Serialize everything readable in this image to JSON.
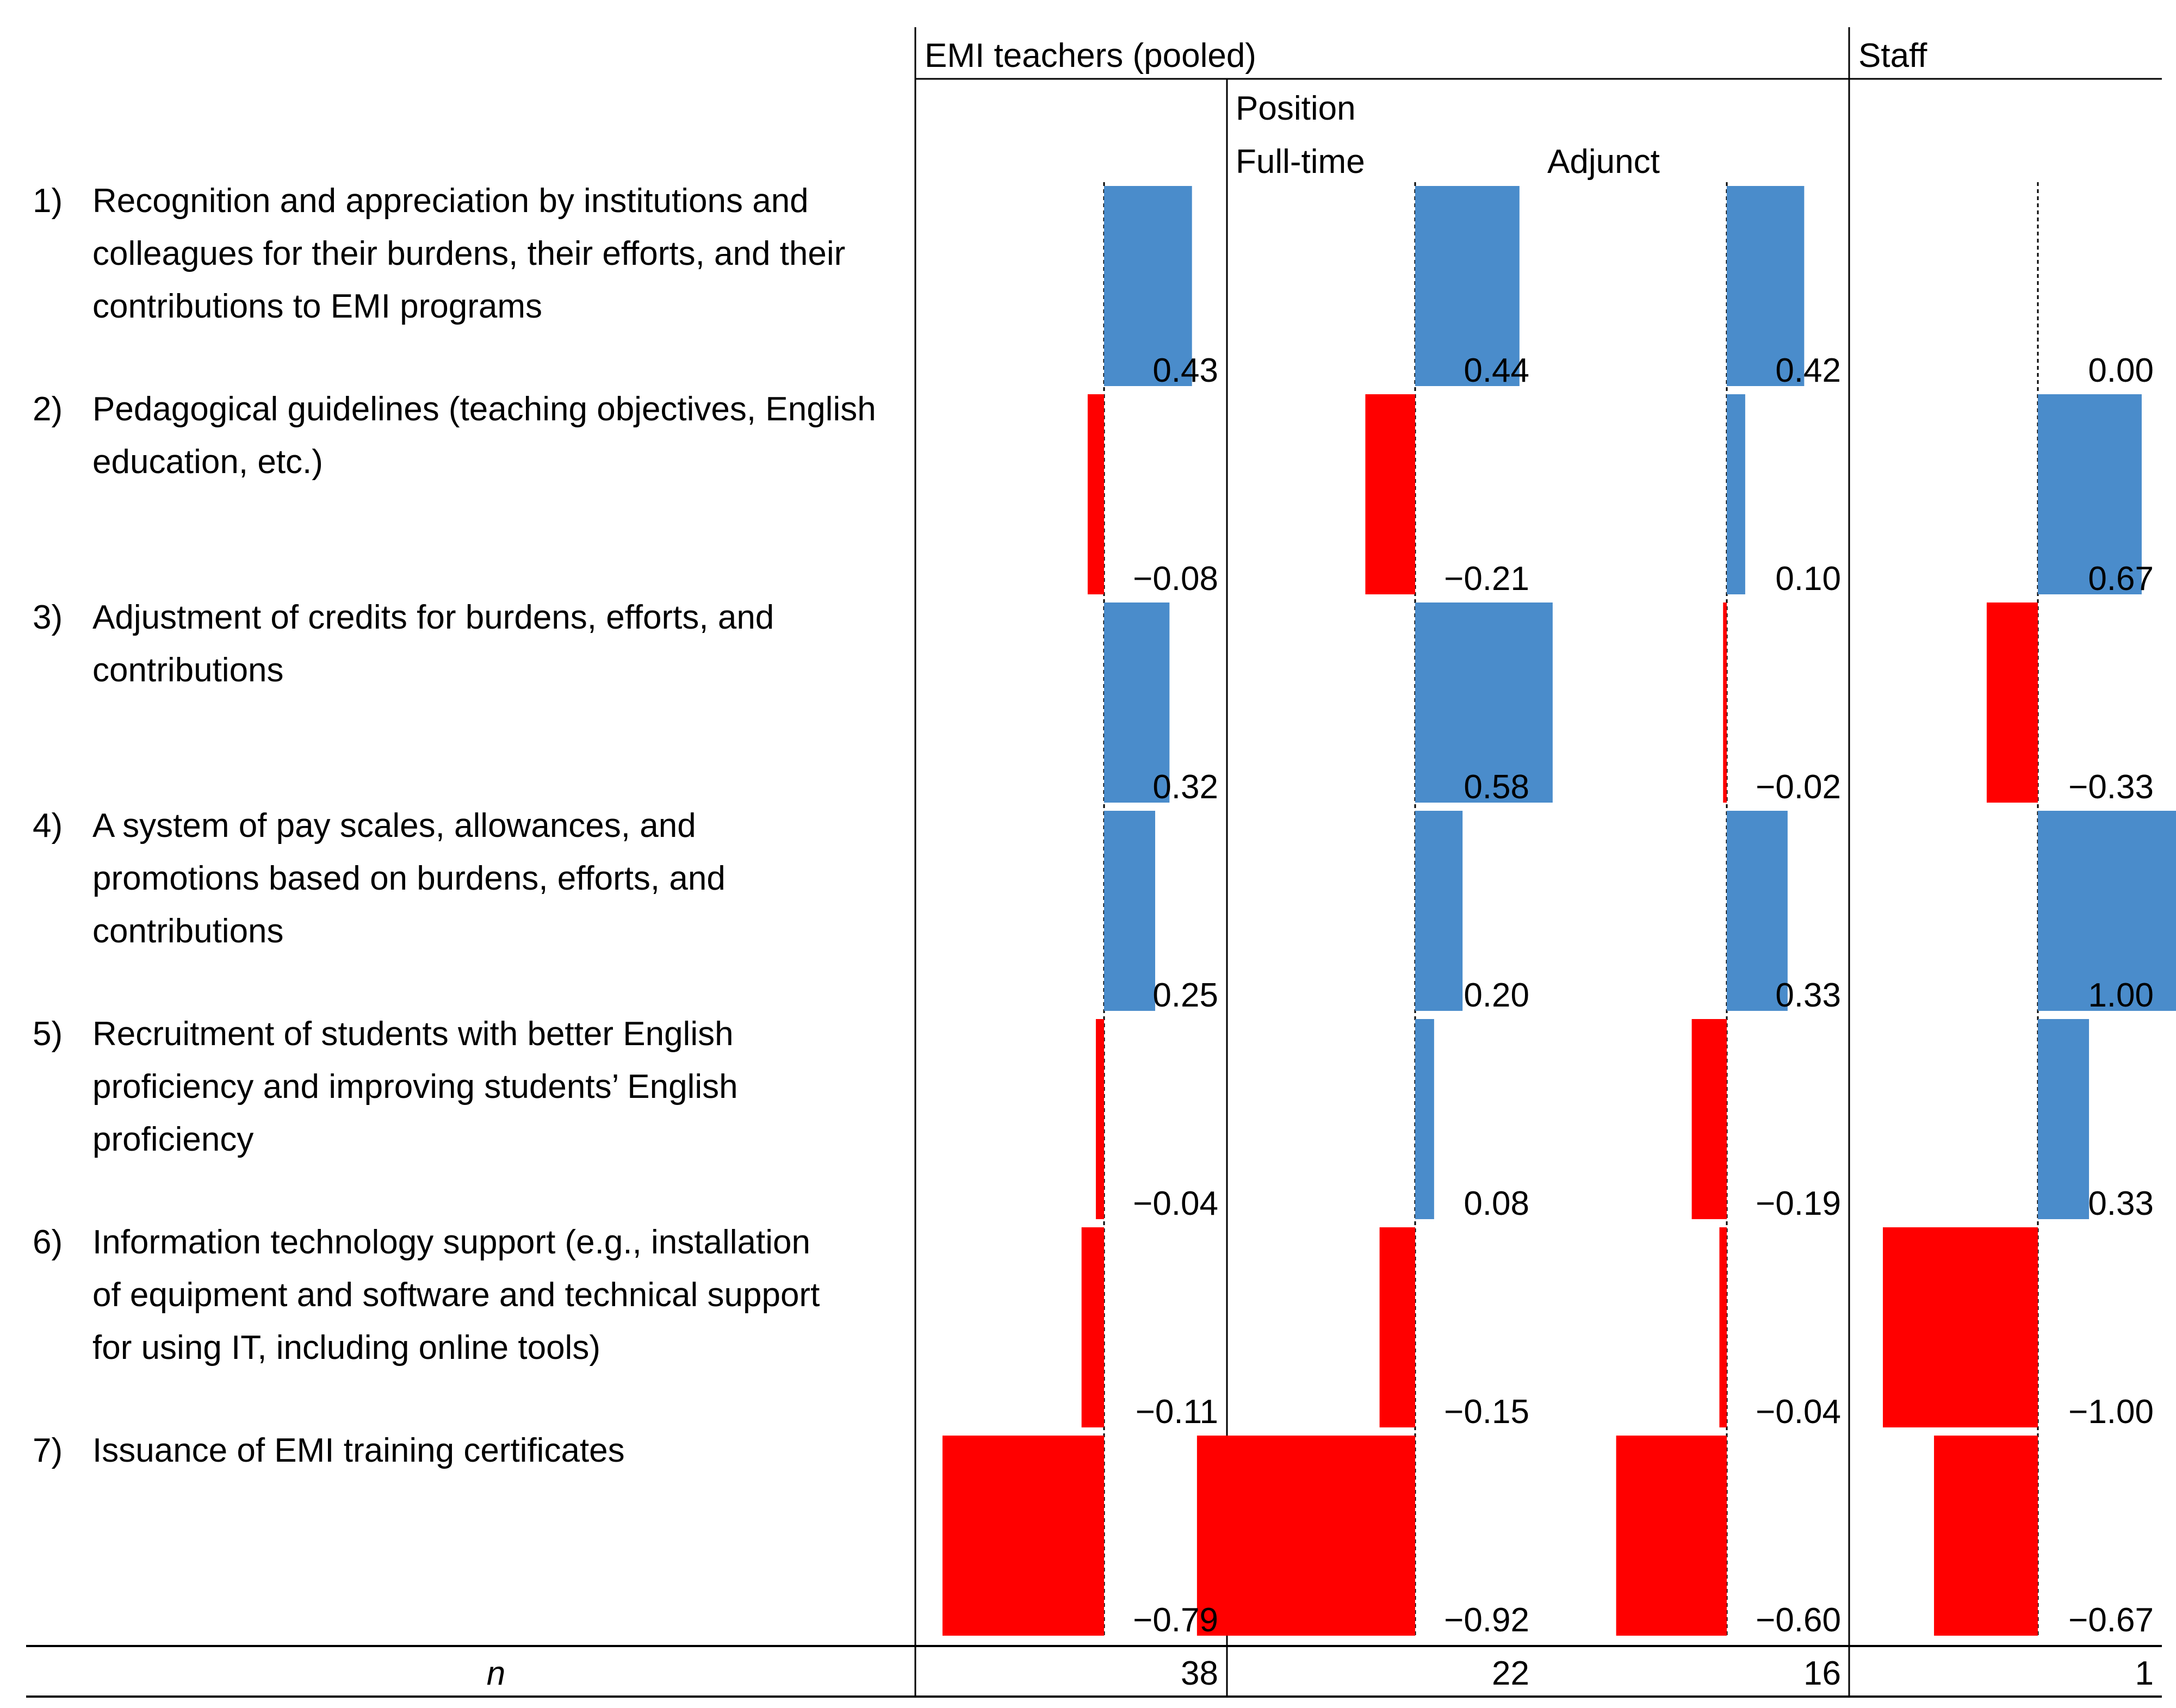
{
  "chart_data": {
    "type": "bar",
    "orientation": "horizontal",
    "headers": {
      "pooled": "EMI teachers (pooled)",
      "position": "Position",
      "fulltime": "Full-time",
      "adjunct": "Adjunct",
      "staff": "Staff"
    },
    "items": [
      {
        "num": "1)",
        "lines": [
          "Recognition and appreciation by institutions and",
          "colleagues for their burdens, their efforts, and their",
          "contributions to EMI programs"
        ]
      },
      {
        "num": "2)",
        "lines": [
          "Pedagogical guidelines (teaching objectives, English",
          "education, etc.)"
        ]
      },
      {
        "num": "3)",
        "lines": [
          "Adjustment of credits for burdens, efforts, and",
          "contributions"
        ]
      },
      {
        "num": "4)",
        "lines": [
          "A system of pay scales, allowances, and",
          "promotions based on burdens, efforts, and",
          "contributions"
        ]
      },
      {
        "num": "5)",
        "lines": [
          "Recruitment of students with better English",
          "proficiency and improving students’ English",
          "proficiency"
        ]
      },
      {
        "num": "6)",
        "lines": [
          "Information technology support (e.g., installation",
          "of equipment and software and technical support",
          "for using IT, including online tools)"
        ]
      },
      {
        "num": "7)",
        "lines": [
          "Issuance of EMI training certificates"
        ]
      }
    ],
    "series": [
      {
        "name": "EMI teachers (pooled)",
        "values": [
          0.43,
          -0.08,
          0.32,
          0.25,
          -0.04,
          -0.11,
          -0.79
        ],
        "labels": [
          "0.43",
          "−0.08",
          "0.32",
          "0.25",
          "−0.04",
          "−0.11",
          "−0.79"
        ],
        "n": "38"
      },
      {
        "name": "Full-time",
        "values": [
          0.44,
          -0.21,
          0.58,
          0.2,
          0.08,
          -0.15,
          -0.92
        ],
        "labels": [
          "0.44",
          "−0.21",
          "0.58",
          "0.20",
          "0.08",
          "−0.15",
          "−0.92"
        ],
        "n": "22"
      },
      {
        "name": "Adjunct",
        "values": [
          0.42,
          0.1,
          -0.02,
          0.33,
          -0.19,
          -0.04,
          -0.6
        ],
        "labels": [
          "0.42",
          "0.10",
          "−0.02",
          "0.33",
          "−0.19",
          "−0.04",
          "−0.60"
        ],
        "n": "16"
      },
      {
        "name": "Staff",
        "values": [
          0.0,
          0.67,
          -0.33,
          1.0,
          0.33,
          -1.0,
          -0.67
        ],
        "labels": [
          "0.00",
          "0.67",
          "−0.33",
          "1.00",
          "0.33",
          "−1.00",
          "−0.67"
        ],
        "n": "1"
      }
    ],
    "n_label": "n",
    "colors": {
      "positive": "#4a8ccb",
      "negative": "#ff0000"
    },
    "xlim": [
      -1,
      1
    ]
  }
}
